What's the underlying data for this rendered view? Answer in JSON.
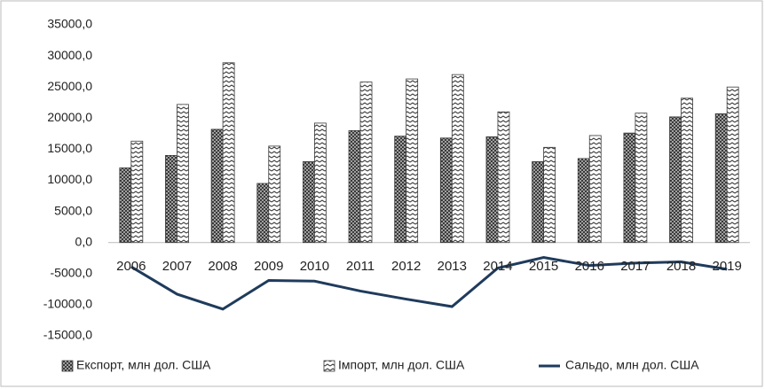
{
  "chart_data": {
    "type": "bar",
    "categories": [
      "2006",
      "2007",
      "2008",
      "2009",
      "2010",
      "2011",
      "2012",
      "2013",
      "2014",
      "2015",
      "2016",
      "2017",
      "2018",
      "2019"
    ],
    "series": [
      {
        "name": "Експорт, млн дол. США",
        "type": "bar",
        "pattern": "crosshatch",
        "color": "#3a3a3a",
        "values": [
          12000,
          14000,
          18200,
          9500,
          13000,
          18000,
          17100,
          16800,
          17000,
          13000,
          13500,
          17600,
          20200,
          20700
        ]
      },
      {
        "name": "Імпорт, млн дол. США",
        "type": "bar",
        "pattern": "zigzag",
        "color": "#3a3a3a",
        "values": [
          16300,
          22200,
          28900,
          15500,
          19200,
          25800,
          26300,
          27000,
          21000,
          15300,
          17200,
          20800,
          23200,
          25000
        ]
      },
      {
        "name": "Сальдо, млн дол. США",
        "type": "line",
        "color": "#1f3b5c",
        "values": [
          -3900,
          -8300,
          -10700,
          -6100,
          -6200,
          -7800,
          -9100,
          -10300,
          -4100,
          -2400,
          -3700,
          -3300,
          -3100,
          -4300
        ]
      }
    ],
    "ylim": [
      -15000,
      35000
    ],
    "yticks": [
      {
        "value": -15000,
        "label": "-15000,0"
      },
      {
        "value": -10000,
        "label": "-10000,0"
      },
      {
        "value": -5000,
        "label": "-5000,0"
      },
      {
        "value": 0,
        "label": "0,0"
      },
      {
        "value": 5000,
        "label": "5000,0"
      },
      {
        "value": 10000,
        "label": "10000,0"
      },
      {
        "value": 15000,
        "label": "15000,0"
      },
      {
        "value": 20000,
        "label": "20000,0"
      },
      {
        "value": 25000,
        "label": "25000,0"
      },
      {
        "value": 30000,
        "label": "30000,0"
      },
      {
        "value": 35000,
        "label": "35000,0"
      }
    ],
    "grid": false,
    "legend": "bottom"
  }
}
